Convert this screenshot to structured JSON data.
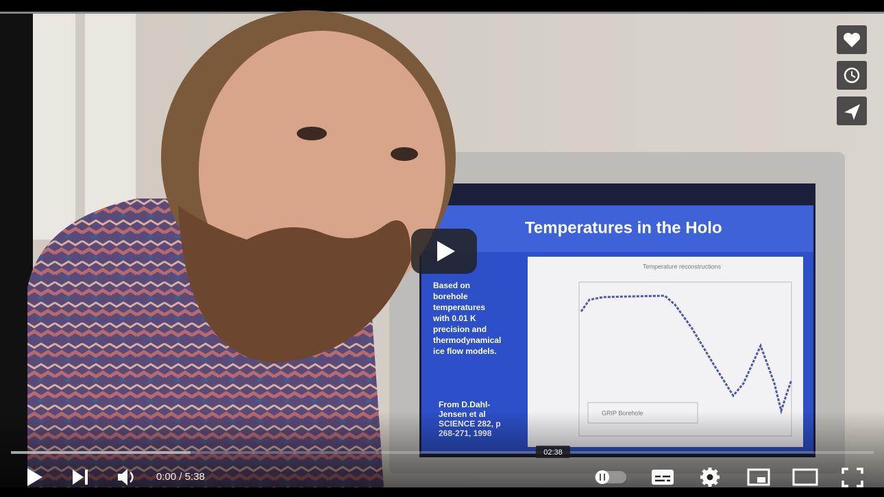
{
  "player": {
    "time_display": "0:00 / 5:38",
    "hover_time": "02:38"
  },
  "slide": {
    "title": "Temperatures in the Holo",
    "caption": [
      "Based on",
      "borehole",
      "temperatures",
      "with 0.01 K",
      "precision and",
      "thermodynamical",
      "ice flow models."
    ],
    "source": [
      "From D.Dahl-",
      "Jensen et al",
      "SCIENCE 282, p",
      "268-271, 1998"
    ],
    "plot_title": "Temperature reconstructions",
    "legend": "GRIP Borehole"
  }
}
